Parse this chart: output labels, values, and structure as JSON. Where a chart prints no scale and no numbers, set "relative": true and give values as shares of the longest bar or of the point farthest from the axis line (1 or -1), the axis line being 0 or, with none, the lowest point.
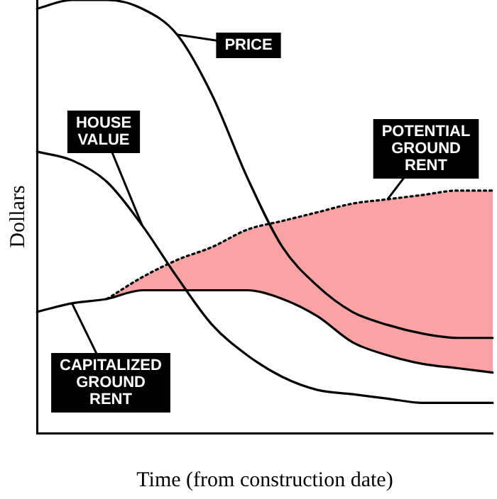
{
  "chart_data": {
    "type": "line",
    "relative": true,
    "xlabel": "Time (from construction date)",
    "ylabel": "Dollars",
    "categories": [
      null,
      null,
      null,
      null,
      null,
      null,
      null,
      null,
      null,
      null,
      null,
      null,
      null,
      null
    ],
    "grid": false,
    "legend": false,
    "marker": "none",
    "series": [
      {
        "name": "PRICE",
        "color": "#000000",
        "line_style": "solid",
        "values": [
          0.98,
          1,
          1,
          0.98,
          0.92,
          0.78,
          0.59,
          0.43,
          0.34,
          0.28,
          0.25,
          0.23,
          0.22,
          0.22
        ]
      },
      {
        "name": "HOUSE VALUE",
        "color": "#000000",
        "line_style": "solid",
        "values": [
          0.65,
          0.63,
          0.58,
          0.48,
          0.36,
          0.25,
          0.18,
          0.13,
          0.1,
          0.09,
          0.08,
          0.07,
          0.07,
          0.07
        ]
      },
      {
        "name": "POTENTIAL GROUND RENT",
        "color": "#000000",
        "line_style": "dotted",
        "values": [
          null,
          null,
          0.31,
          0.36,
          0.4,
          0.43,
          0.47,
          0.49,
          0.51,
          0.53,
          0.54,
          0.55,
          0.56,
          0.56
        ],
        "lower": [
          null,
          null,
          0.31,
          0.33,
          0.33,
          0.33,
          0.33,
          0.31,
          0.27,
          0.21,
          0.18,
          0.16,
          0.15,
          0.14
        ],
        "upper": [
          null,
          null,
          0.31,
          0.36,
          0.4,
          0.43,
          0.47,
          0.49,
          0.51,
          0.53,
          0.54,
          0.55,
          0.56,
          0.56
        ]
      },
      {
        "name": "CAPITALIZED GROUND RENT",
        "color": "#000000",
        "line_style": "solid",
        "values": [
          0.28,
          0.3,
          0.31,
          0.33,
          0.33,
          0.33,
          0.33,
          0.31,
          0.27,
          0.21,
          0.18,
          0.16,
          0.15,
          0.14
        ]
      }
    ]
  }
}
